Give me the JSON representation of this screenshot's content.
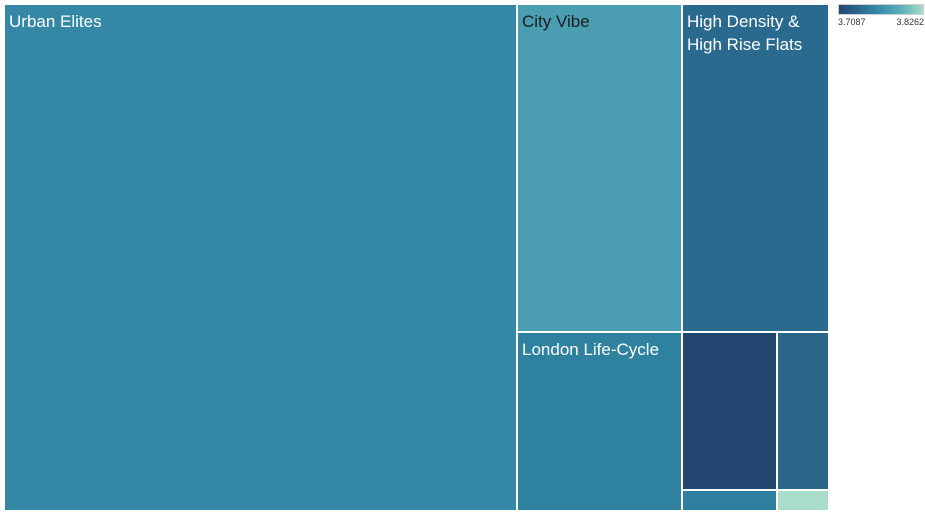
{
  "chart_data": {
    "type": "treemap",
    "title": "",
    "tiles": [
      {
        "label": "Urban Elites",
        "size": 48.9,
        "color_value": 3.747,
        "color": "#3588a5",
        "label_dark": false
      },
      {
        "label": "City Vibe",
        "size": 11.6,
        "color_value": 3.772,
        "color": "#4b9db2",
        "label_dark": true
      },
      {
        "label": "London Life-Cycle",
        "size": 6.9,
        "color_value": 3.739,
        "color": "#2f81a0",
        "label_dark": false
      },
      {
        "label": "High Density &\nHigh Rise Flats",
        "size": 11.9,
        "color_value": 3.721,
        "color": "#2a6a8e",
        "label_dark": false
      },
      {
        "label": "",
        "size": 3.7,
        "color_value": 3.7087,
        "color": "#234570",
        "label_dark": false
      },
      {
        "label": "",
        "size": 1.9,
        "color_value": 3.722,
        "color": "#2b6688",
        "label_dark": false
      },
      {
        "label": "",
        "size": 0.5,
        "color_value": 3.738,
        "color": "#2f7fa0",
        "label_dark": false
      },
      {
        "label": "",
        "size": 0.3,
        "color_value": 3.8262,
        "color": "#a9dcc9",
        "label_dark": false
      }
    ],
    "legend": {
      "type": "continuous",
      "min_label": "3.7087",
      "max_label": "3.8262",
      "placement": "top-right",
      "colors": [
        "#234570",
        "#a8dcc9"
      ]
    }
  }
}
